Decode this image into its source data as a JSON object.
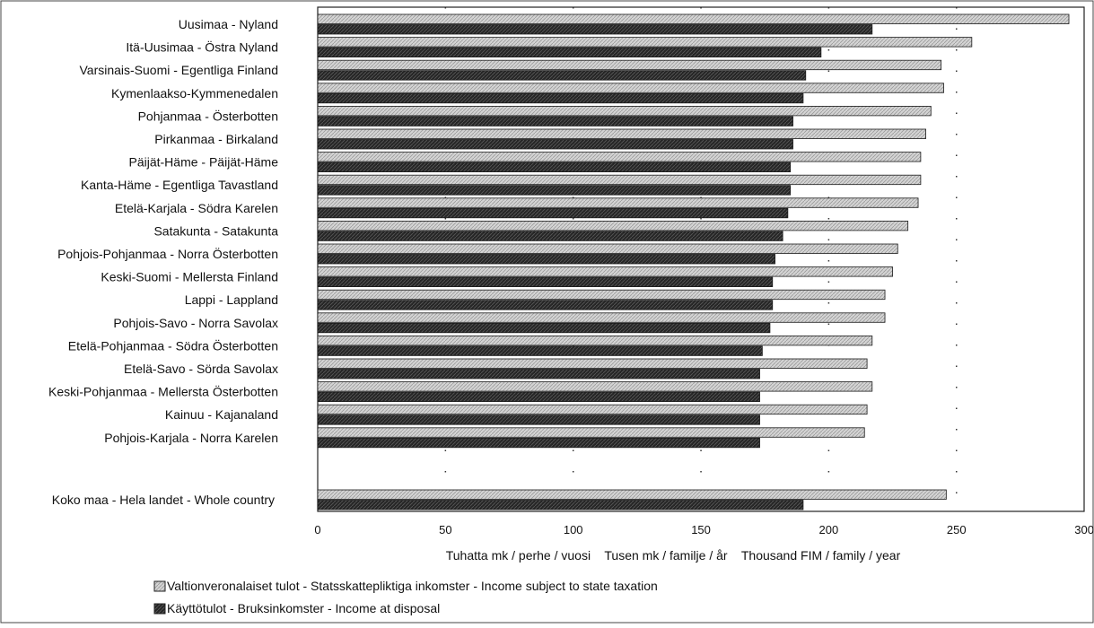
{
  "chart_data": {
    "type": "bar",
    "orientation": "horizontal",
    "xlabel": "Tuhatta mk / perhe / vuosi    Tusen mk / familje / år    Thousand FIM / family / year",
    "xlim": [
      0,
      300
    ],
    "x_ticks": [
      "0",
      "50",
      "100",
      "150",
      "200",
      "250",
      "300"
    ],
    "grid": "dotted vertical lines",
    "legend_position": "bottom-left",
    "categories": [
      "Uusimaa - Nyland",
      "Itä-Uusimaa - Östra Nyland",
      "Varsinais-Suomi - Egentliga Finland",
      "Kymenlaakso-Kymmenedalen",
      "Pohjanmaa - Österbotten",
      "Pirkanmaa - Birkaland",
      "Päijät-Häme - Päijät-Häme",
      "Kanta-Häme - Egentliga Tavastland",
      "Etelä-Karjala - Södra Karelen",
      "Satakunta - Satakunta",
      "Pohjois-Pohjanmaa - Norra Österbotten",
      "Keski-Suomi - Mellersta Finland",
      "Lappi - Lappland",
      "Pohjois-Savo - Norra Savolax",
      "Etelä-Pohjanmaa - Södra Österbotten",
      "Etelä-Savo - Sörda Savolax",
      "Keski-Pohjanmaa - Mellersta Österbotten",
      "Kainuu - Kajanaland",
      "Pohjois-Karjala - Norra Karelen",
      "Koko maa - Hela landet - Whole country"
    ],
    "series": [
      {
        "name": "Valtionveronalaiset tulot - Statsskattepliktiga inkomster - Income subject to state taxation",
        "color": "#d9d9d9",
        "values": [
          294,
          256,
          244,
          245,
          240,
          238,
          236,
          236,
          235,
          231,
          227,
          225,
          222,
          222,
          217,
          215,
          217,
          215,
          214,
          246
        ]
      },
      {
        "name": "Käyttötulot - Bruksinkomster - Income at disposal",
        "color": "#2e2e2e",
        "values": [
          217,
          197,
          191,
          190,
          186,
          186,
          185,
          185,
          184,
          182,
          179,
          178,
          178,
          177,
          174,
          173,
          173,
          173,
          173,
          190
        ]
      }
    ]
  }
}
